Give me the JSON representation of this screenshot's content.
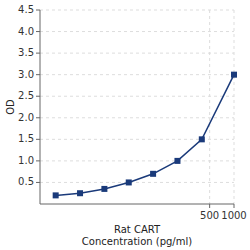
{
  "chart_data": {
    "type": "line",
    "x_label": "Rat CART\nConcentration (pg/ml)",
    "y_label": "OD",
    "x": [
      6.25,
      12.5,
      25,
      50,
      100,
      200,
      400,
      1000
    ],
    "series": [
      {
        "color": "#1a3a7a",
        "marker": "square",
        "values": [
          0.2,
          0.25,
          0.35,
          0.5,
          0.7,
          1.0,
          1.5,
          3.0
        ]
      }
    ],
    "xlim": [
      4,
      1000
    ],
    "ylim": [
      0,
      4.5
    ],
    "xticks": [
      500,
      1000
    ],
    "yticks": [
      0.5,
      {
        "value": 1.0,
        "label": "1.0"
      },
      1.5,
      {
        "value": 2.0,
        "label": "2.0"
      },
      2.5,
      {
        "value": 3.0,
        "label": "3.0"
      },
      3.5,
      {
        "value": 4.0,
        "label": "4.0"
      },
      4.5
    ],
    "log": "x",
    "grid": true
  }
}
